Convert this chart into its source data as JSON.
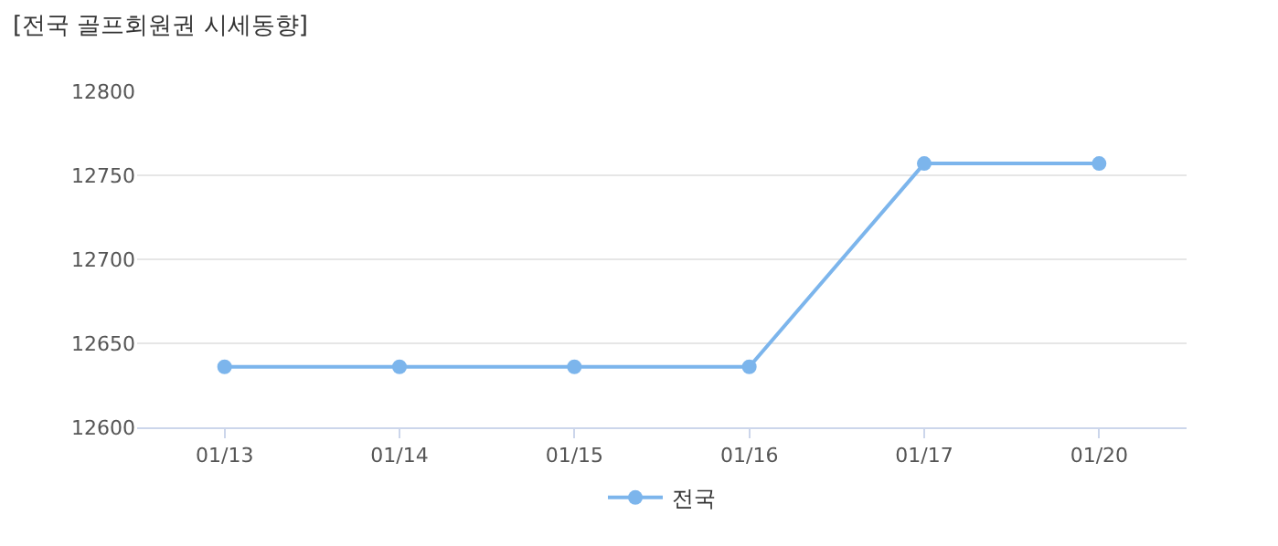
{
  "chart_data": {
    "type": "line",
    "title": "[전국 골프회원권 시세동향]",
    "categories": [
      "01/13",
      "01/14",
      "01/15",
      "01/16",
      "01/17",
      "01/20"
    ],
    "series": [
      {
        "name": "전국",
        "color": "#7cb5ec",
        "values": [
          12636,
          12636,
          12636,
          12636,
          12757,
          12757
        ]
      }
    ],
    "ylim": [
      12600,
      12800
    ],
    "yticks": [
      12600,
      12650,
      12700,
      12750,
      12800
    ],
    "grid": "y",
    "legend": "bottom",
    "marker": "circle",
    "line_style": "solid"
  }
}
